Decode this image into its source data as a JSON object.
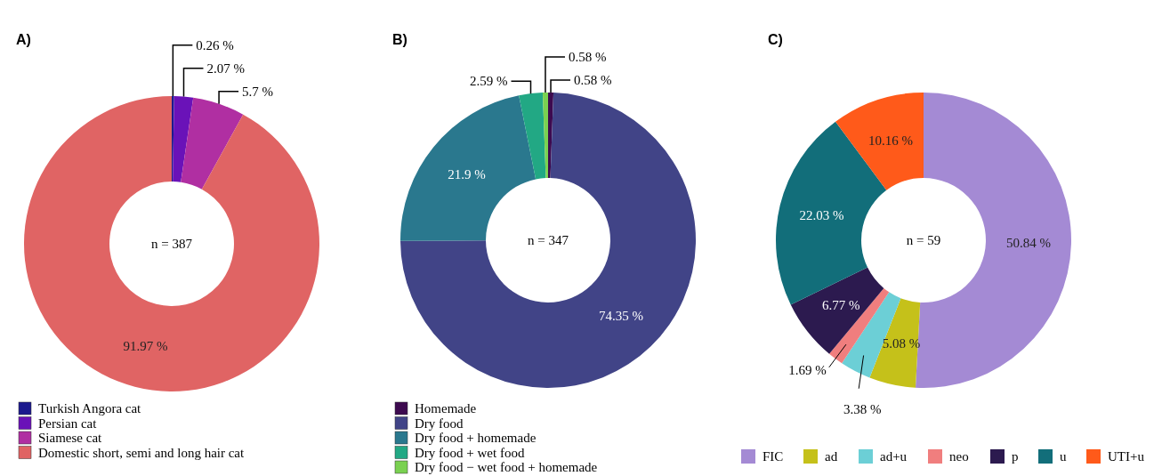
{
  "chart_data": [
    {
      "type": "donut",
      "title": "A)",
      "categories": [
        "Turkish Angora cat",
        "Persian cat",
        "Siamese cat",
        "Domestic short, semi and long hair cat"
      ],
      "values": [
        0.26,
        2.07,
        5.7,
        91.97
      ],
      "value_labels": [
        "0.26 %",
        "2.07 %",
        "5.7 %",
        "91.97 %"
      ],
      "colors": [
        "#1c1a8e",
        "#6a12b8",
        "#b02fa2",
        "#e06464"
      ],
      "annotations": [
        "n = 387"
      ],
      "legend": "bottom left"
    },
    {
      "type": "donut",
      "title": "B)",
      "categories": [
        "Homemade",
        "Dry food",
        "Dry food + homemade",
        "Dry food + wet food",
        "Dry food − wet food + homemade"
      ],
      "values": [
        0.58,
        74.35,
        21.9,
        2.59,
        0.58
      ],
      "value_labels": [
        "0.58 %",
        "74.35 %",
        "21.9 %",
        "2.59 %",
        "0.58 %"
      ],
      "colors": [
        "#3d0a4f",
        "#414487",
        "#2a788e",
        "#22a884",
        "#7ad151"
      ],
      "annotations": [
        "n = 347"
      ],
      "legend": "bottom left"
    },
    {
      "type": "donut",
      "title": "C)",
      "categories": [
        "FIC",
        "ad",
        "ad+u",
        "neo",
        "p",
        "u",
        "UTI+u"
      ],
      "values": [
        50.84,
        5.08,
        3.38,
        1.69,
        6.77,
        22.03,
        10.16
      ],
      "value_labels": [
        "50.84 %",
        "5.08 %",
        "3.38 %",
        "1.69 %",
        "6.77 %",
        "22.03 %",
        "10.16 %"
      ],
      "colors": [
        "#a48ad4",
        "#c5c11a",
        "#6ccfd6",
        "#f07e7e",
        "#2c1a4f",
        "#126e7a",
        "#ff5a1a"
      ],
      "annotations": [
        "n = 59"
      ],
      "legend": "bottom"
    }
  ]
}
